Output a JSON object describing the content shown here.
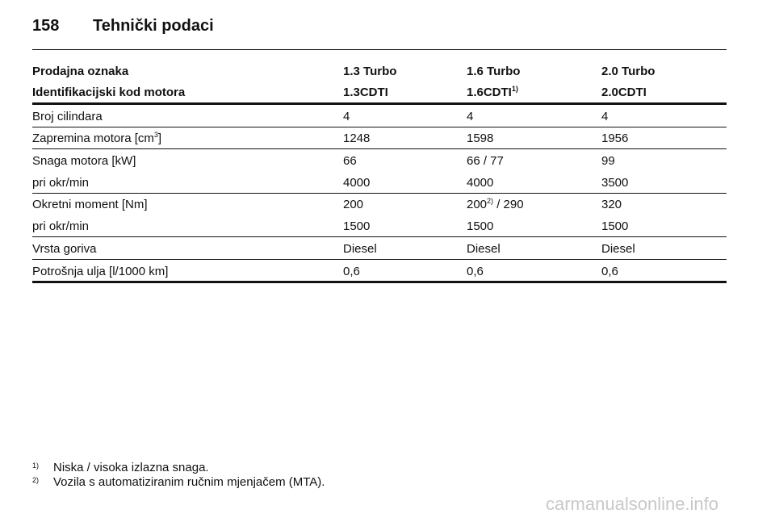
{
  "header": {
    "page_number": "158",
    "title": "Tehnički podaci"
  },
  "table": {
    "header_rows": [
      [
        "Prodajna oznaka",
        "1.3 Turbo",
        "1.6 Turbo",
        "2.0 Turbo"
      ],
      [
        "Identifikacijski kod motora",
        "1.3CDTI",
        {
          "text": "1.6CDTI",
          "sup": "1)"
        },
        "2.0CDTI"
      ]
    ],
    "rows": [
      [
        "Broj cilindara",
        "4",
        "4",
        "4"
      ],
      [
        {
          "text": "Zapremina motora [cm",
          "sup": "3",
          "after": "]"
        },
        "1248",
        "1598",
        "1956"
      ],
      [
        "Snaga motora [kW]",
        "66",
        "66 / 77",
        "99"
      ],
      [
        "pri okr/min",
        "4000",
        "4000",
        "3500"
      ],
      [
        "Okretni moment [Nm]",
        "200",
        {
          "text": "200",
          "sup": "2)",
          "after": " / 290"
        },
        "320"
      ],
      [
        "pri okr/min",
        "1500",
        "1500",
        "1500"
      ],
      [
        "Vrsta goriva",
        "Diesel",
        "Diesel",
        "Diesel"
      ],
      [
        "Potrošnja ulja [l/1000 km]",
        "0,6",
        "0,6",
        "0,6"
      ]
    ]
  },
  "footnotes": [
    {
      "marker": "1)",
      "text": "Niska / visoka izlazna snaga."
    },
    {
      "marker": "2)",
      "text": "Vozila s automatiziranim ručnim mjenjačem (MTA)."
    }
  ],
  "watermark": "carmanualsonline.info"
}
